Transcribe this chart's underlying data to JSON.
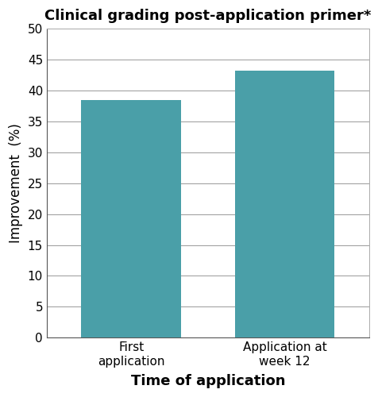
{
  "categories": [
    "First\napplication",
    "Application at\nweek 12"
  ],
  "values": [
    38.5,
    43.2
  ],
  "bar_color": "#4a9fa8",
  "title": "Clinical grading post-application primer*",
  "xlabel": "Time of application",
  "ylabel": "Improvement  (%)",
  "ylim": [
    0,
    50
  ],
  "yticks": [
    0,
    5,
    10,
    15,
    20,
    25,
    30,
    35,
    40,
    45,
    50
  ],
  "title_fontsize": 13,
  "xlabel_fontsize": 13,
  "ylabel_fontsize": 12,
  "tick_fontsize": 11,
  "bar_width": 0.65,
  "background_color": "#ffffff"
}
